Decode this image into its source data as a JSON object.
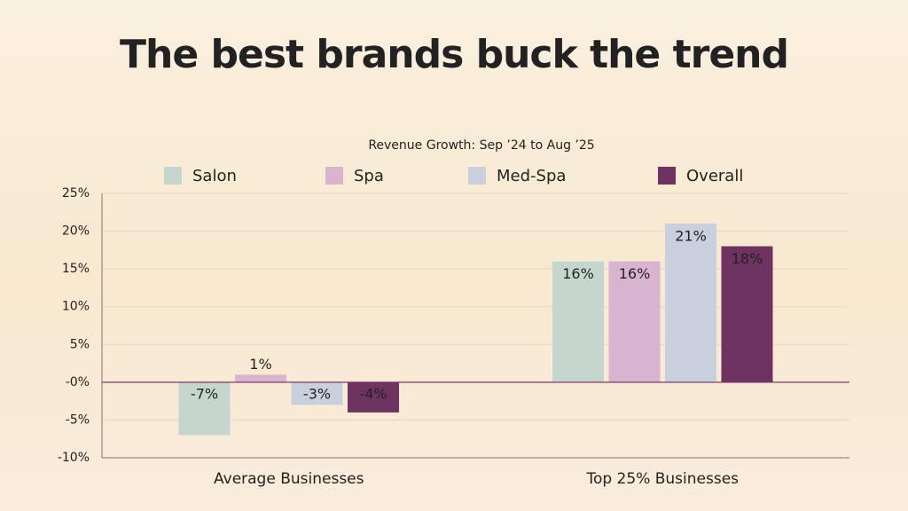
{
  "chart_data": {
    "type": "bar",
    "title": "The best brands buck the trend",
    "subtitle": "Revenue Growth: Sep ’24 to Aug ’25",
    "categories": [
      "Average Businesses",
      "Top 25% Businesses"
    ],
    "series": [
      {
        "name": "Salon",
        "color": "#c5d6cf",
        "values": [
          -7,
          16
        ],
        "value_labels": [
          "-7%",
          "16%"
        ]
      },
      {
        "name": "Spa",
        "color": "#d8b4d0",
        "values": [
          1,
          16
        ],
        "value_labels": [
          "1%",
          "16%"
        ]
      },
      {
        "name": "Med-Spa",
        "color": "#c9d0dd",
        "values": [
          -3,
          21
        ],
        "value_labels": [
          "-3%",
          "21%"
        ]
      },
      {
        "name": "Overall",
        "color": "#6e3360",
        "values": [
          -4,
          18
        ],
        "value_labels": [
          "-4%",
          "18%"
        ]
      }
    ],
    "ylim": [
      -10,
      25
    ],
    "yticks": [
      {
        "value": -10,
        "label": "-10%"
      },
      {
        "value": -5,
        "label": "-5%"
      },
      {
        "value": 0,
        "label": "-0%"
      },
      {
        "value": 5,
        "label": "5%"
      },
      {
        "value": 10,
        "label": "10%"
      },
      {
        "value": 15,
        "label": "15%"
      },
      {
        "value": 20,
        "label": "20%"
      },
      {
        "value": 25,
        "label": "25%"
      }
    ],
    "grid": true,
    "legend": "top"
  }
}
